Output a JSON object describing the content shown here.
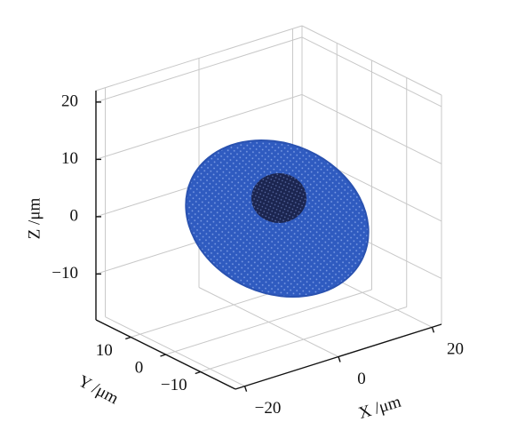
{
  "chart_data": {
    "type": "mesh3d",
    "xlabel": "X /μm",
    "ylabel": "Y /μm",
    "zlabel": "Z /μm",
    "xlim": [
      -22,
      22
    ],
    "ylim": [
      -20,
      20
    ],
    "zlim": [
      -18,
      22
    ],
    "xticks": [
      {
        "value": -20,
        "label": "−20"
      },
      0,
      20
    ],
    "yticks": [
      {
        "value": -10,
        "label": "−10"
      },
      0,
      10
    ],
    "zticks": [
      {
        "value": -10,
        "label": "−10"
      },
      0,
      10,
      20
    ],
    "grid": true
  }
}
